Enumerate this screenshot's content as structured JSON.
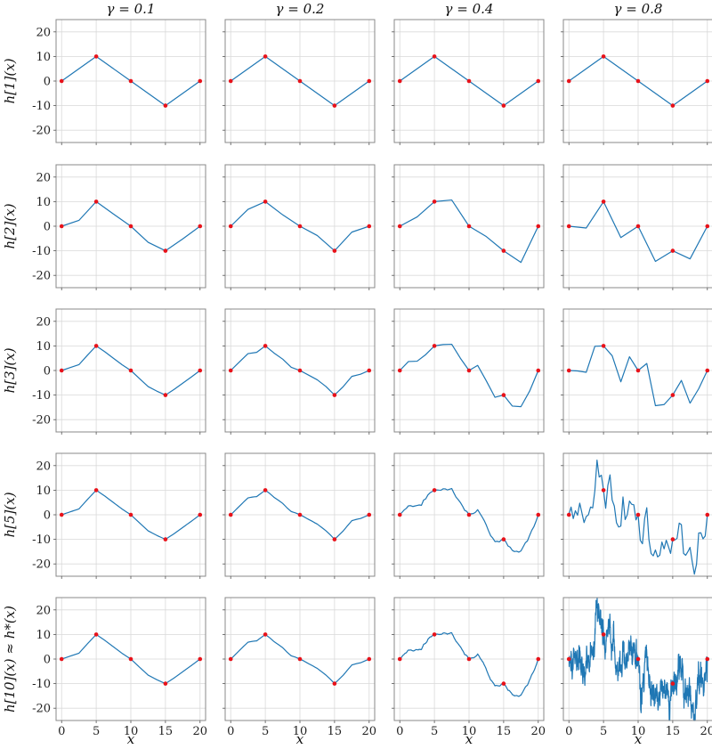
{
  "chart_data": {
    "type": "line",
    "layout": "grid 5 rows x 4 columns",
    "column_titles": [
      "γ = 0.1",
      "γ = 0.2",
      "γ = 0.4",
      "γ = 0.8"
    ],
    "row_ylabels": [
      "h[1](x)",
      "h[2](x)",
      "h[3](x)",
      "h[5](x)",
      "h[10](x) ≈ h*(x)"
    ],
    "xlabel": "x",
    "xlim": [
      -0.8,
      20.8
    ],
    "ylim": [
      -25,
      25
    ],
    "xticks": [
      0,
      5,
      10,
      15,
      20
    ],
    "yticks": [
      -20,
      -10,
      0,
      10,
      20
    ],
    "grid": true,
    "sharex": true,
    "sharey": true,
    "colors": {
      "line": "#1f77b4",
      "points": "#e8121a",
      "grid": "#d9d9d9",
      "frame": "#888888"
    },
    "anchor_points": {
      "x": [
        0,
        5,
        10,
        15,
        20
      ],
      "y": [
        0,
        10,
        0,
        -10,
        0
      ]
    },
    "recursion_depth": [
      1,
      2,
      3,
      5,
      10
    ],
    "roughness_gamma": [
      0.1,
      0.2,
      0.4,
      0.8
    ]
  }
}
